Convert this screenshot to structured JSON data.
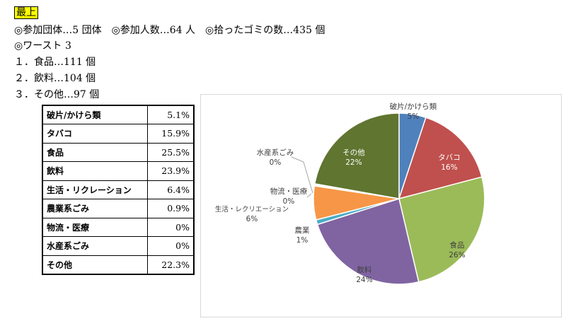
{
  "header": {
    "title": "最上"
  },
  "summary": {
    "line1": "◎参加団体…5 団体　◎参加人数…64 人　◎拾ったゴミの数…435 個",
    "worst_heading": "◎ワースト 3",
    "worst_items": [
      "１．食品…111 個",
      "２．飲料…104 個",
      "３．その他…97 個"
    ]
  },
  "table": {
    "rows": [
      {
        "category": "破片/かけら類",
        "percent": "5.1%"
      },
      {
        "category": "タバコ",
        "percent": "15.9%"
      },
      {
        "category": "食品",
        "percent": "25.5%"
      },
      {
        "category": "飲料",
        "percent": "23.9%"
      },
      {
        "category": "生活・リクレーション",
        "percent": "6.4%"
      },
      {
        "category": "農業系ごみ",
        "percent": "0.9%"
      },
      {
        "category": "物流・医療",
        "percent": "0%"
      },
      {
        "category": "水産系ごみ",
        "percent": "0%"
      },
      {
        "category": "その他",
        "percent": "22.3%"
      }
    ]
  },
  "chart_data": {
    "type": "pie",
    "categories": [
      "破片/かけら類",
      "タバコ",
      "食品",
      "飲料",
      "農業",
      "生活・レクリエーション",
      "物流・医療",
      "水産系ごみ",
      "その他"
    ],
    "values": [
      5.1,
      15.9,
      25.5,
      23.9,
      0.9,
      6.4,
      0.2,
      0.2,
      22.3
    ],
    "data_labels": [
      "5%",
      "16%",
      "26%",
      "24%",
      "1%",
      "6%",
      "0%",
      "0%",
      "22%"
    ],
    "colors": [
      "#4f81bd",
      "#c0504d",
      "#9bbb59",
      "#8064a2",
      "#4bacc6",
      "#f79646",
      "#2c4d75",
      "#772c2a",
      "#5f7530"
    ],
    "label_colors": [
      "#404040",
      "#ffffff",
      "#404040",
      "#404040",
      "#404040",
      "#404040",
      "#404040",
      "#404040",
      "#ffffff"
    ]
  }
}
